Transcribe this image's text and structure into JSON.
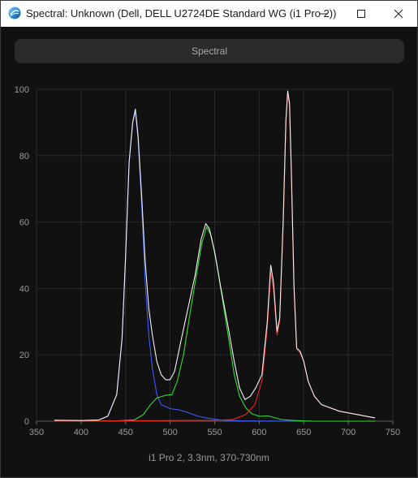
{
  "window": {
    "title": "Spectral: Unknown (Dell, DELL U2724DE Standard WG (i1 Pro 2))",
    "icon": "app-logo-icon",
    "controls": [
      "minimize-icon",
      "maximize-icon",
      "close-icon"
    ]
  },
  "header": {
    "label": "Spectral"
  },
  "caption": "i1 Pro 2, 3.3nm, 370-730nm",
  "chart_data": {
    "type": "line",
    "xlim": [
      350,
      750
    ],
    "ylim": [
      0,
      100
    ],
    "x_ticks": [
      350,
      400,
      450,
      500,
      550,
      600,
      650,
      700,
      750
    ],
    "y_ticks": [
      0,
      20,
      40,
      60,
      80,
      100
    ],
    "grid": true,
    "background": "#111111",
    "series": [
      {
        "color": "#3f5cff",
        "points": [
          [
            370,
            0.1
          ],
          [
            400,
            0.2
          ],
          [
            420,
            0.4
          ],
          [
            430,
            1.5
          ],
          [
            440,
            8
          ],
          [
            446,
            25
          ],
          [
            450,
            50
          ],
          [
            454,
            78
          ],
          [
            458,
            90
          ],
          [
            461,
            93
          ],
          [
            464,
            85
          ],
          [
            468,
            65
          ],
          [
            472,
            42
          ],
          [
            476,
            26
          ],
          [
            480,
            16
          ],
          [
            485,
            8
          ],
          [
            490,
            5
          ],
          [
            500,
            3.8
          ],
          [
            510,
            3.4
          ],
          [
            520,
            2.6
          ],
          [
            530,
            1.6
          ],
          [
            540,
            1
          ],
          [
            550,
            0.6
          ],
          [
            560,
            0.3
          ],
          [
            580,
            0.1
          ],
          [
            600,
            0.05
          ],
          [
            650,
            0
          ],
          [
            730,
            0
          ]
        ]
      },
      {
        "color": "#33dd33",
        "points": [
          [
            370,
            0.3
          ],
          [
            380,
            0.2
          ],
          [
            400,
            0.1
          ],
          [
            440,
            0.1
          ],
          [
            460,
            0.4
          ],
          [
            470,
            2
          ],
          [
            478,
            5
          ],
          [
            485,
            7
          ],
          [
            495,
            7.8
          ],
          [
            502,
            8
          ],
          [
            508,
            12
          ],
          [
            515,
            20
          ],
          [
            522,
            32
          ],
          [
            530,
            45
          ],
          [
            536,
            54
          ],
          [
            541,
            58.5
          ],
          [
            546,
            56
          ],
          [
            552,
            48
          ],
          [
            558,
            38
          ],
          [
            565,
            26
          ],
          [
            572,
            14
          ],
          [
            578,
            7.5
          ],
          [
            585,
            4
          ],
          [
            592,
            2.2
          ],
          [
            600,
            1.5
          ],
          [
            610,
            1.6
          ],
          [
            618,
            1
          ],
          [
            625,
            0.5
          ],
          [
            640,
            0.2
          ],
          [
            660,
            0
          ],
          [
            730,
            0
          ]
        ]
      },
      {
        "color": "#ee2222",
        "points": [
          [
            370,
            0
          ],
          [
            450,
            0.1
          ],
          [
            500,
            0.2
          ],
          [
            550,
            0.3
          ],
          [
            570,
            0.5
          ],
          [
            585,
            2
          ],
          [
            595,
            5
          ],
          [
            603,
            12
          ],
          [
            609,
            28
          ],
          [
            613,
            45
          ],
          [
            616,
            40
          ],
          [
            620,
            26
          ],
          [
            623,
            30
          ],
          [
            627,
            60
          ],
          [
            630,
            90
          ],
          [
            632,
            98.5
          ],
          [
            634,
            95
          ],
          [
            636,
            75
          ],
          [
            639,
            40
          ],
          [
            642,
            22
          ],
          [
            646,
            20.5
          ],
          [
            650,
            18
          ],
          [
            655,
            12
          ],
          [
            662,
            7.5
          ],
          [
            670,
            5
          ],
          [
            690,
            3
          ],
          [
            710,
            2
          ],
          [
            730,
            1
          ]
        ]
      },
      {
        "color": "#f2f2f2",
        "points": [
          [
            370,
            0.3
          ],
          [
            400,
            0.2
          ],
          [
            420,
            0.4
          ],
          [
            430,
            1.5
          ],
          [
            440,
            8
          ],
          [
            446,
            25
          ],
          [
            450,
            50
          ],
          [
            454,
            78
          ],
          [
            458,
            90
          ],
          [
            461,
            94
          ],
          [
            464,
            86
          ],
          [
            468,
            68
          ],
          [
            472,
            48
          ],
          [
            476,
            34
          ],
          [
            480,
            26
          ],
          [
            485,
            18
          ],
          [
            490,
            14
          ],
          [
            495,
            12.5
          ],
          [
            500,
            12.5
          ],
          [
            505,
            15
          ],
          [
            512,
            24
          ],
          [
            520,
            34
          ],
          [
            528,
            44
          ],
          [
            535,
            55
          ],
          [
            540,
            59.5
          ],
          [
            544,
            58
          ],
          [
            550,
            51
          ],
          [
            557,
            40
          ],
          [
            564,
            30
          ],
          [
            572,
            18
          ],
          [
            578,
            10
          ],
          [
            584,
            6.5
          ],
          [
            590,
            7.5
          ],
          [
            596,
            10
          ],
          [
            603,
            14
          ],
          [
            609,
            30
          ],
          [
            613,
            47
          ],
          [
            616,
            42
          ],
          [
            620,
            27
          ],
          [
            623,
            31
          ],
          [
            627,
            61
          ],
          [
            630,
            91
          ],
          [
            632,
            99.5
          ],
          [
            634,
            96
          ],
          [
            636,
            76
          ],
          [
            639,
            41
          ],
          [
            642,
            22
          ],
          [
            646,
            21
          ],
          [
            650,
            18
          ],
          [
            655,
            12
          ],
          [
            662,
            7.5
          ],
          [
            670,
            5
          ],
          [
            690,
            3
          ],
          [
            710,
            2
          ],
          [
            730,
            1
          ]
        ]
      }
    ]
  }
}
